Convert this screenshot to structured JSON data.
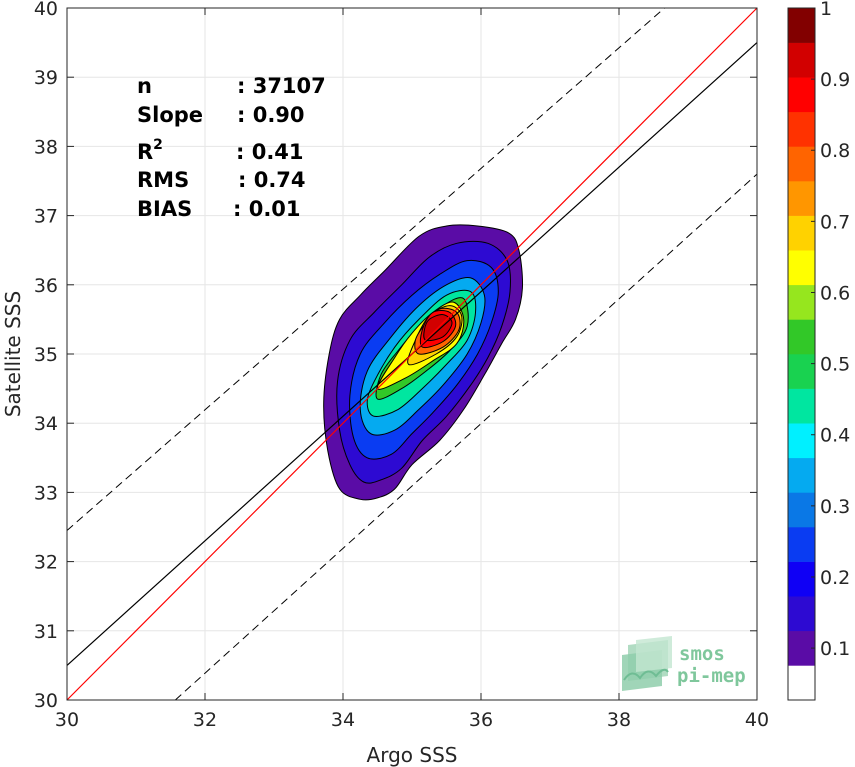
{
  "chart_data": {
    "type": "density-contour",
    "xlabel": "Argo SSS",
    "ylabel": "Satellite SSS",
    "xlim": [
      30,
      40
    ],
    "ylim": [
      30,
      40
    ],
    "xticks": [
      30,
      32,
      34,
      36,
      38,
      40
    ],
    "yticks": [
      30,
      31,
      32,
      33,
      34,
      35,
      36,
      37,
      38,
      39,
      40
    ],
    "grid": true,
    "stats": [
      {
        "label": "n",
        "value": ": 37107"
      },
      {
        "label": "Slope",
        "value": ": 0.90"
      },
      {
        "label": "R",
        "sup": "2",
        "value": ": 0.41"
      },
      {
        "label": "RMS",
        "value": ": 0.74"
      },
      {
        "label": "BIAS",
        "value": ": 0.01"
      }
    ],
    "reference_lines": {
      "identity": {
        "x": [
          30,
          40
        ],
        "y": [
          30,
          40
        ],
        "color": "#ff0000"
      },
      "regression": {
        "x": [
          30,
          40
        ],
        "y": [
          30.5,
          39.5
        ],
        "color": "#000000"
      },
      "upper_dashed": {
        "x": [
          30,
          38.66
        ],
        "y": [
          32.45,
          40
        ]
      },
      "lower_dashed": {
        "x": [
          31.57,
          40
        ],
        "y": [
          30,
          37.6
        ]
      }
    },
    "colorbar": {
      "ticks": [
        "0.1",
        "0.2",
        "0.3",
        "0.4",
        "0.5",
        "0.6",
        "0.7",
        "0.8",
        "0.9",
        "1"
      ],
      "colors": [
        "#ffffff",
        "#5a0ca6",
        "#2d0ad2",
        "#0f00f5",
        "#0a3cf2",
        "#0a78e6",
        "#05aaf0",
        "#00f0ff",
        "#00e6a0",
        "#19d250",
        "#32c828",
        "#96e61e",
        "#ffff00",
        "#ffd200",
        "#ff9600",
        "#ff6400",
        "#ff3200",
        "#ff0000",
        "#d20000",
        "#820000"
      ]
    },
    "contours": [
      {
        "level": 0.05,
        "color": "#5a0ca6",
        "points": [
          [
            34.25,
            32.9
          ],
          [
            34.5,
            32.92
          ],
          [
            34.75,
            33.05
          ],
          [
            35.0,
            33.4
          ],
          [
            35.4,
            33.75
          ],
          [
            35.75,
            34.2
          ],
          [
            36.05,
            34.7
          ],
          [
            36.3,
            35.15
          ],
          [
            36.5,
            35.5
          ],
          [
            36.6,
            35.95
          ],
          [
            36.55,
            36.5
          ],
          [
            36.4,
            36.75
          ],
          [
            35.95,
            36.85
          ],
          [
            35.5,
            36.85
          ],
          [
            35.1,
            36.7
          ],
          [
            34.6,
            36.2
          ],
          [
            34.25,
            35.85
          ],
          [
            33.95,
            35.5
          ],
          [
            33.8,
            35.0
          ],
          [
            33.72,
            34.3
          ],
          [
            33.78,
            33.6
          ],
          [
            33.95,
            33.05
          ]
        ]
      },
      {
        "level": 0.1,
        "color": "#2d0ad2",
        "points": [
          [
            34.3,
            33.15
          ],
          [
            34.55,
            33.18
          ],
          [
            34.85,
            33.35
          ],
          [
            35.15,
            33.75
          ],
          [
            35.5,
            34.1
          ],
          [
            35.85,
            34.55
          ],
          [
            36.1,
            34.95
          ],
          [
            36.3,
            35.4
          ],
          [
            36.42,
            35.9
          ],
          [
            36.38,
            36.35
          ],
          [
            36.1,
            36.6
          ],
          [
            35.65,
            36.6
          ],
          [
            35.25,
            36.4
          ],
          [
            34.85,
            36.0
          ],
          [
            34.45,
            35.6
          ],
          [
            34.1,
            35.2
          ],
          [
            33.92,
            34.6
          ],
          [
            33.95,
            33.9
          ],
          [
            34.1,
            33.4
          ]
        ]
      },
      {
        "level": 0.2,
        "color": "#0a3cf2",
        "points": [
          [
            34.35,
            33.5
          ],
          [
            34.7,
            33.55
          ],
          [
            35.0,
            33.85
          ],
          [
            35.3,
            34.15
          ],
          [
            35.65,
            34.55
          ],
          [
            35.95,
            35.0
          ],
          [
            36.15,
            35.45
          ],
          [
            36.25,
            35.9
          ],
          [
            36.15,
            36.25
          ],
          [
            35.8,
            36.35
          ],
          [
            35.4,
            36.15
          ],
          [
            35.0,
            35.85
          ],
          [
            34.6,
            35.45
          ],
          [
            34.25,
            35.0
          ],
          [
            34.1,
            34.4
          ],
          [
            34.15,
            33.8
          ]
        ]
      },
      {
        "level": 0.3,
        "color": "#05aaf0",
        "points": [
          [
            34.4,
            33.85
          ],
          [
            34.75,
            33.9
          ],
          [
            35.1,
            34.2
          ],
          [
            35.45,
            34.55
          ],
          [
            35.8,
            35.0
          ],
          [
            36.0,
            35.45
          ],
          [
            36.05,
            35.85
          ],
          [
            35.85,
            36.1
          ],
          [
            35.5,
            36.0
          ],
          [
            35.1,
            35.7
          ],
          [
            34.7,
            35.25
          ],
          [
            34.35,
            34.75
          ],
          [
            34.25,
            34.2
          ]
        ]
      },
      {
        "level": 0.4,
        "color": "#00e6a0",
        "points": [
          [
            34.45,
            34.1
          ],
          [
            34.8,
            34.2
          ],
          [
            35.15,
            34.5
          ],
          [
            35.5,
            34.85
          ],
          [
            35.8,
            35.2
          ],
          [
            35.92,
            35.6
          ],
          [
            35.85,
            35.9
          ],
          [
            35.5,
            35.85
          ],
          [
            35.1,
            35.5
          ],
          [
            34.75,
            35.1
          ],
          [
            34.45,
            34.6
          ],
          [
            34.35,
            34.3
          ]
        ]
      },
      {
        "level": 0.5,
        "color": "#32c828",
        "points": [
          [
            34.5,
            34.35
          ],
          [
            34.85,
            34.5
          ],
          [
            35.2,
            34.75
          ],
          [
            35.55,
            35.05
          ],
          [
            35.8,
            35.4
          ],
          [
            35.75,
            35.8
          ],
          [
            35.45,
            35.7
          ],
          [
            35.1,
            35.4
          ],
          [
            34.8,
            35.05
          ],
          [
            34.55,
            34.7
          ]
        ]
      },
      {
        "level": 0.6,
        "color": "#ffff00",
        "points": [
          [
            34.5,
            34.5
          ],
          [
            34.9,
            34.65
          ],
          [
            35.3,
            34.9
          ],
          [
            35.65,
            35.15
          ],
          [
            35.75,
            35.5
          ],
          [
            35.6,
            35.75
          ],
          [
            35.3,
            35.6
          ],
          [
            35.0,
            35.3
          ],
          [
            34.75,
            34.95
          ]
        ]
      },
      {
        "level": 0.7,
        "color": "#ffd200",
        "points": [
          [
            34.95,
            34.85
          ],
          [
            35.35,
            35.0
          ],
          [
            35.65,
            35.25
          ],
          [
            35.72,
            35.55
          ],
          [
            35.55,
            35.7
          ],
          [
            35.25,
            35.55
          ],
          [
            35.05,
            35.2
          ]
        ]
      },
      {
        "level": 0.8,
        "color": "#ff6400",
        "points": [
          [
            35.1,
            35.0
          ],
          [
            35.45,
            35.1
          ],
          [
            35.68,
            35.35
          ],
          [
            35.65,
            35.6
          ],
          [
            35.4,
            35.65
          ],
          [
            35.2,
            35.45
          ],
          [
            35.05,
            35.2
          ]
        ]
      },
      {
        "level": 0.9,
        "color": "#ff0000",
        "points": [
          [
            35.15,
            35.1
          ],
          [
            35.45,
            35.18
          ],
          [
            35.63,
            35.4
          ],
          [
            35.55,
            35.6
          ],
          [
            35.3,
            35.6
          ],
          [
            35.15,
            35.35
          ]
        ]
      },
      {
        "level": 0.95,
        "color": "#d20000",
        "points": [
          [
            35.2,
            35.2
          ],
          [
            35.45,
            35.25
          ],
          [
            35.58,
            35.45
          ],
          [
            35.45,
            35.57
          ],
          [
            35.25,
            35.5
          ],
          [
            35.18,
            35.35
          ]
        ]
      }
    ]
  },
  "logo": {
    "line1": "smos",
    "line2": "pi-mep"
  }
}
